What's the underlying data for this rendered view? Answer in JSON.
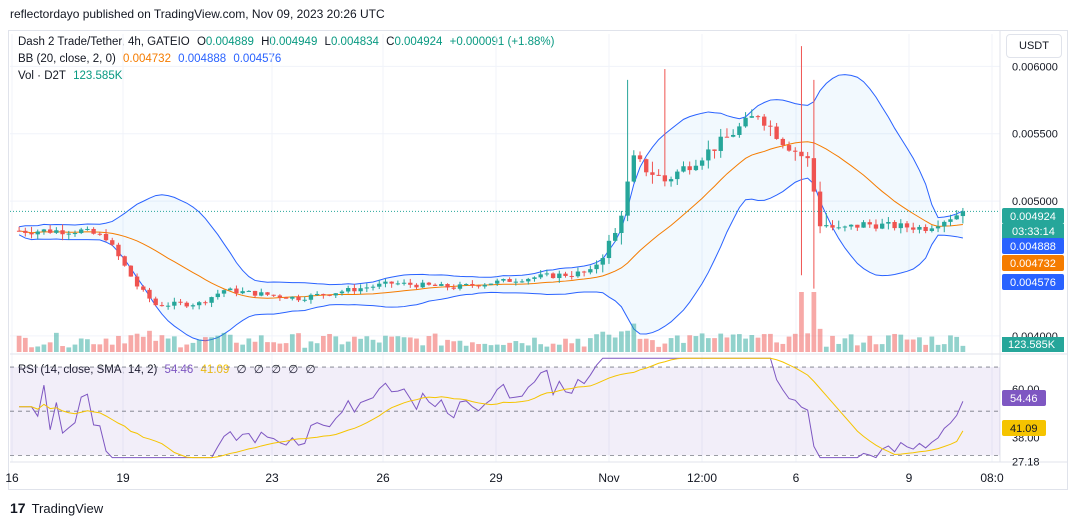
{
  "header": {
    "publisher": "reflectordayo published on TradingView.com, Nov 09, 2023 20:26 UTC"
  },
  "legend": {
    "symbol": "Dash 2 Trade/Tether, 4h, GATEIO",
    "open_label": "O",
    "open": "0.004889",
    "high_label": "H",
    "high": "0.004949",
    "low_label": "L",
    "low": "0.004834",
    "close_label": "C",
    "close": "0.004924",
    "change": "+0.000091 (+1.88%)",
    "bb_label": "BB (20, close, 2, 0)",
    "bb_values": [
      "0.004732",
      "0.004888",
      "0.004576"
    ],
    "vol_label": "Vol · D2T",
    "vol_value": "123.585K",
    "rsi_label": "RSI (14, close, SMA, 14, 2)",
    "rsi_value": "54.46",
    "rsi_ma": "41.09",
    "rsi_extras": [
      "∅",
      "∅",
      "∅",
      "∅",
      "∅"
    ]
  },
  "currency_button": "USDT",
  "footer": {
    "logo": "17",
    "brand": "TradingView"
  },
  "colors": {
    "up": "#26a69a",
    "down": "#ef5350",
    "basis": "#f57c00",
    "bands": "#2962ff",
    "rsi": "#7e57c2",
    "rsi_ma": "#f5c400"
  },
  "chart_data": {
    "type": "candlestick",
    "y_ticks": [
      "0.006000",
      "0.005500",
      "0.005000",
      "0.004000"
    ],
    "rsi_ticks": [
      "60.00",
      "38.00",
      "27.18"
    ],
    "x_ticks": [
      "16",
      "19",
      "23",
      "26",
      "29",
      "Nov",
      "12:00",
      "6",
      "9",
      "08:0"
    ],
    "ylim": [
      0.00388,
      0.00624
    ],
    "rsi_ylim": [
      27,
      75
    ],
    "last_price": 0.004924,
    "countdown": "03:33:14",
    "badges": [
      {
        "label": "0.004924",
        "value": 0.004924,
        "color": "#26a69a"
      },
      {
        "label": "0.004888",
        "value": 0.004888,
        "color": "#2962ff"
      },
      {
        "label": "0.004732",
        "value": 0.004732,
        "color": "#f57c00"
      },
      {
        "label": "0.004576",
        "value": 0.004576,
        "color": "#2962ff"
      }
    ],
    "vol_badge": "123.585K",
    "rsi_badges": [
      {
        "label": "54.46",
        "value": 54.46,
        "color": "#7e57c2"
      },
      {
        "label": "41.09",
        "value": 41.09,
        "color": "#f5c400"
      }
    ],
    "anchors": [
      [
        0,
        0.00478,
        1.1e-06,
        1.1e-06
      ],
      [
        10,
        0.00478,
        9e-07,
        9e-07
      ],
      [
        14,
        0.00473,
        8e-07,
        8e-07
      ],
      [
        19,
        0.00437,
        7e-07,
        7e-07
      ],
      [
        22,
        0.00423,
        6e-07,
        6e-07
      ],
      [
        29,
        0.00424,
        6e-07,
        6e-07
      ],
      [
        33,
        0.00434,
        5e-07,
        5e-07
      ],
      [
        45,
        0.00428,
        6e-07,
        6e-07
      ],
      [
        60,
        0.00439,
        5e-07,
        5e-07
      ],
      [
        70,
        0.00436,
        5e-07,
        5e-07
      ],
      [
        84,
        0.00444,
        7e-07,
        7e-07
      ],
      [
        92,
        0.00447,
        9e-07,
        9e-07
      ],
      [
        96,
        0.00475,
        2e-06,
        2e-06
      ],
      [
        99,
        0.0053,
        1.8e-06,
        1.8e-06
      ],
      [
        104,
        0.00515,
        1.6e-06,
        1.6e-06
      ],
      [
        112,
        0.0054,
        1.4e-06,
        1.4e-06
      ],
      [
        119,
        0.00565,
        1.5e-06,
        1.5e-06
      ],
      [
        123,
        0.00545,
        1.6e-06,
        1.6e-06
      ],
      [
        127,
        0.0053,
        1.8e-06,
        1.8e-06
      ],
      [
        129,
        0.00485,
        2.5e-06,
        2.5e-06
      ],
      [
        132,
        0.00478,
        1.5e-06,
        1.5e-06
      ],
      [
        136,
        0.00483,
        1e-06,
        1e-06
      ],
      [
        146,
        0.0048,
        9e-07,
        9e-07
      ],
      [
        152,
        0.00492,
        1e-06,
        1e-06
      ]
    ]
  }
}
